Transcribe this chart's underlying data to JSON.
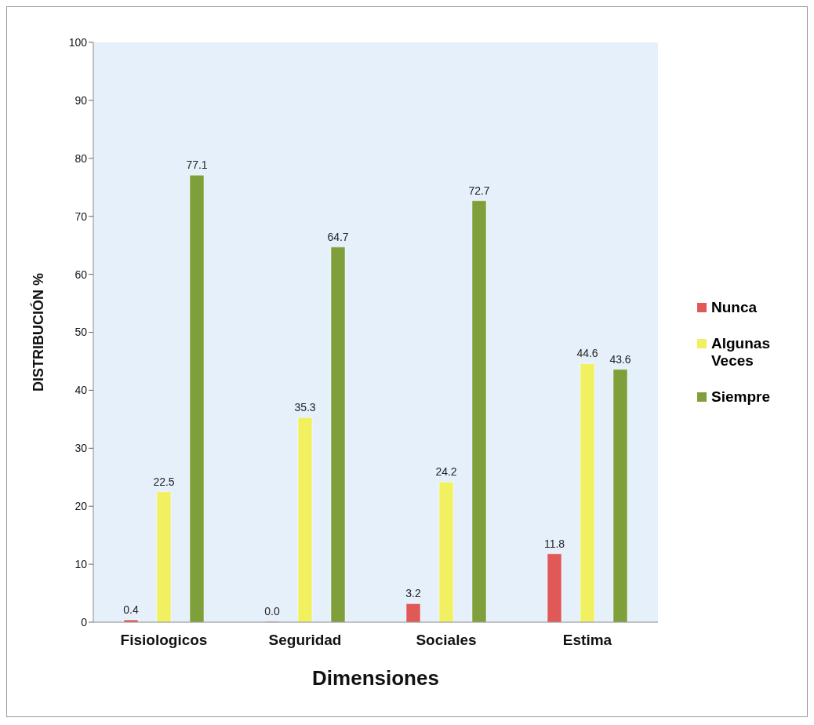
{
  "chart_data": {
    "type": "bar",
    "xlabel": "Dimensiones",
    "ylabel": "DISTRIBUCIÓN %",
    "categories": [
      "Fisiologicos",
      "Seguridad",
      "Sociales",
      "Estima"
    ],
    "series": [
      {
        "name": "Nunca",
        "color": "#e05858",
        "values": [
          0.4,
          0.0,
          3.2,
          11.8
        ],
        "value_labels": [
          "0.4",
          "0.0",
          "3.2",
          "11.8"
        ]
      },
      {
        "name": "Algunas Veces",
        "color": "#f0f060",
        "values": [
          22.5,
          35.3,
          24.2,
          44.6
        ],
        "value_labels": [
          "22.5",
          "35.3",
          "24.2",
          "44.6"
        ]
      },
      {
        "name": "Siempre",
        "color": "#7f9f3a",
        "values": [
          77.1,
          64.7,
          72.7,
          43.6
        ],
        "value_labels": [
          "77.1",
          "64.7",
          "72.7",
          "43.6"
        ]
      }
    ],
    "ylim": [
      0,
      100
    ],
    "yticks": [
      0,
      10,
      20,
      30,
      40,
      50,
      60,
      70,
      80,
      90,
      100
    ],
    "grid": false,
    "legend": "right"
  }
}
